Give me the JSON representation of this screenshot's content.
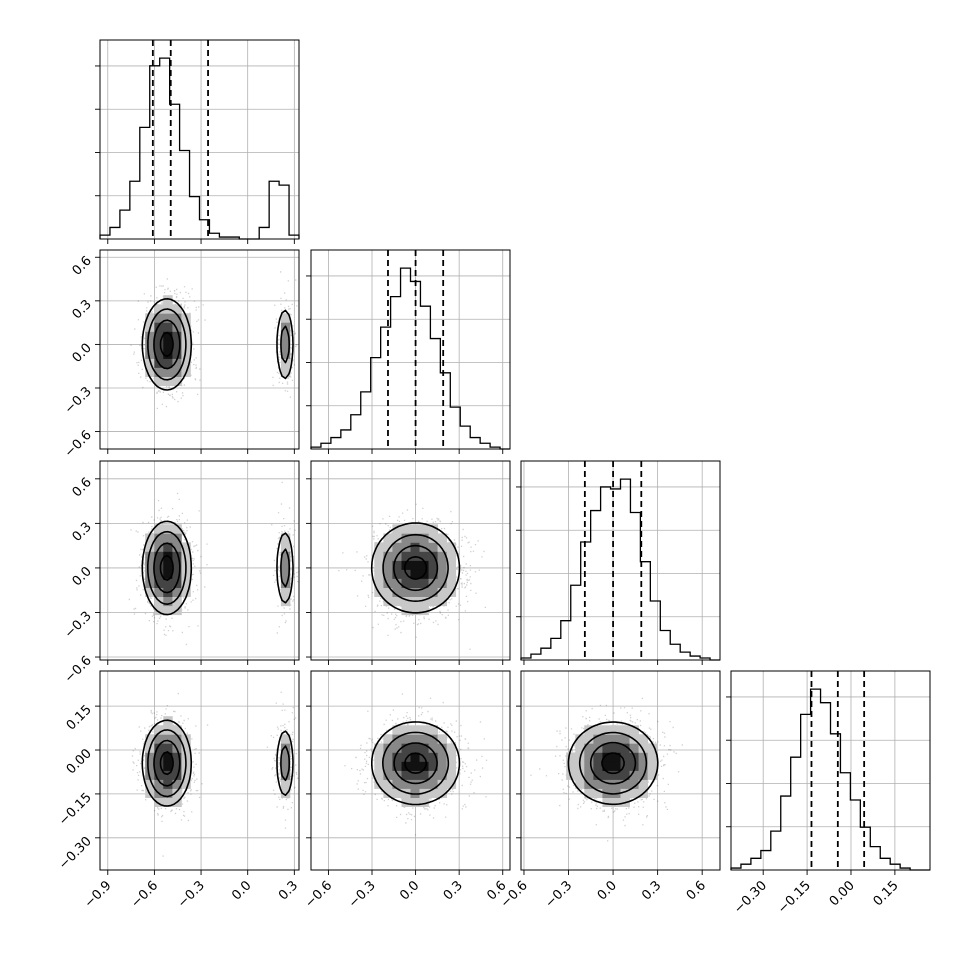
{
  "chart_data": {
    "type": "corner",
    "grid": true,
    "parameters": [
      {
        "id": "p1",
        "range": [
          -0.95,
          0.33
        ],
        "ticks": [
          -0.9,
          -0.6,
          -0.3,
          0.0,
          0.3
        ],
        "tick_labels": [
          "−0.9",
          "−0.6",
          "−0.3",
          "0.0",
          "0.3"
        ],
        "quantiles": [
          -0.61,
          -0.495,
          -0.255
        ],
        "histogram": [
          2,
          6,
          15,
          30,
          58,
          90,
          94,
          70,
          46,
          22,
          10,
          3,
          1,
          1,
          0,
          0,
          6,
          30,
          28,
          2
        ]
      },
      {
        "id": "p2",
        "range": [
          -0.72,
          0.65
        ],
        "ticks": [
          -0.6,
          -0.3,
          0.0,
          0.3,
          0.6
        ],
        "tick_labels": [
          "−0.6",
          "−0.3",
          "0.0",
          "0.3",
          "0.6"
        ],
        "quantiles": [
          -0.19,
          0.0,
          0.19
        ],
        "histogram": [
          1,
          3,
          6,
          10,
          18,
          30,
          48,
          64,
          80,
          95,
          88,
          75,
          58,
          40,
          22,
          12,
          6,
          3,
          1,
          0
        ]
      },
      {
        "id": "p3",
        "range": [
          -0.62,
          0.72
        ],
        "ticks": [
          -0.6,
          -0.3,
          0.0,
          0.3,
          0.6
        ],
        "tick_labels": [
          "−0.6",
          "−0.3",
          "0.0",
          "0.3",
          "0.6"
        ],
        "quantiles": [
          -0.19,
          0.0,
          0.19
        ],
        "histogram": [
          1,
          3,
          6,
          11,
          20,
          38,
          60,
          76,
          88,
          87,
          92,
          75,
          50,
          30,
          15,
          8,
          4,
          2,
          1,
          0
        ]
      },
      {
        "id": "p4",
        "range": [
          -0.41,
          0.27
        ],
        "ticks": [
          -0.3,
          -0.15,
          0.0,
          0.15
        ],
        "tick_labels": [
          "−0.30",
          "−0.15",
          "0.00",
          "0.15"
        ],
        "quantiles": [
          -0.135,
          -0.045,
          0.045
        ],
        "histogram": [
          1,
          3,
          6,
          10,
          20,
          38,
          58,
          80,
          93,
          86,
          70,
          50,
          36,
          22,
          12,
          6,
          3,
          1,
          0,
          0
        ]
      }
    ],
    "modes": {
      "p1": [
        {
          "weight": 0.86,
          "mean": -0.52,
          "sd": 0.075
        },
        {
          "weight": 0.14,
          "mean": 0.24,
          "sd": 0.032
        }
      ],
      "p2": [
        {
          "weight": 1.0,
          "mean": 0.0,
          "sd": 0.15
        }
      ],
      "p3": [
        {
          "weight": 1.0,
          "mean": 0.0,
          "sd": 0.15
        }
      ],
      "p4": [
        {
          "weight": 1.0,
          "mean": -0.045,
          "sd": 0.07
        }
      ]
    },
    "samples_per_panel": 1500
  }
}
